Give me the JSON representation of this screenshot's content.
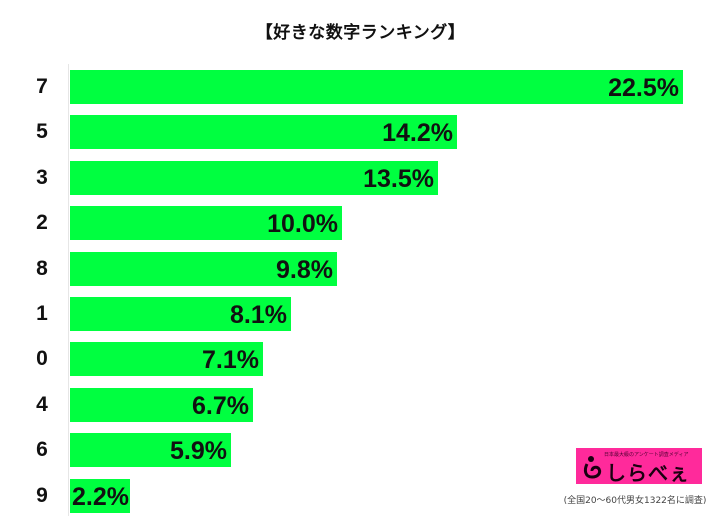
{
  "title": "【好きな数字ランキング】",
  "chart_data": {
    "type": "bar",
    "orientation": "horizontal",
    "title": "【好きな数字ランキング】",
    "xlabel": "",
    "ylabel": "",
    "categories": [
      "7",
      "5",
      "3",
      "2",
      "8",
      "1",
      "0",
      "4",
      "6",
      "9"
    ],
    "values": [
      22.5,
      14.2,
      13.5,
      10.0,
      9.8,
      8.1,
      7.1,
      6.7,
      5.9,
      2.2
    ],
    "value_labels": [
      "22.5%",
      "14.2%",
      "13.5%",
      "10.0%",
      "9.8%",
      "8.1%",
      "7.1%",
      "6.7%",
      "5.9%",
      "2.2%"
    ],
    "unit": "%",
    "bar_color": "#00ff40",
    "grid": false,
    "legend": "none",
    "xlim": [
      0,
      22.5
    ]
  },
  "logo": {
    "tagline": "日本最大級のアンケート調査メディア",
    "name": "しらべぇ",
    "background": "#ff2a9b"
  },
  "source_note": "(全国20〜60代男女1322名に調査)"
}
